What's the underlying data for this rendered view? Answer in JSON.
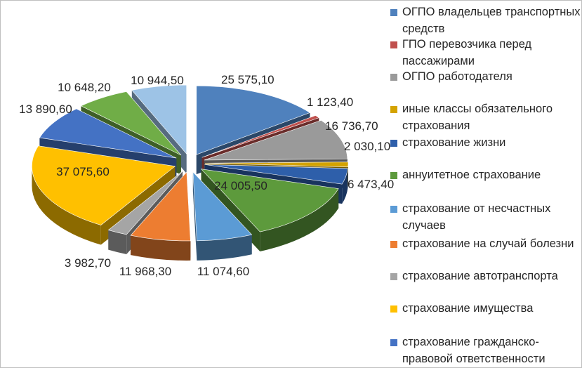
{
  "chart_data": {
    "type": "pie",
    "title": "",
    "slices": [
      {
        "label": "ОГПО владельцев транспортных средств",
        "value": 25575.1,
        "display": "25 575,10",
        "color": "#4f81bd"
      },
      {
        "label": "ГПО перевозчика перед пассажирами",
        "value": 1123.4,
        "display": "1 123,40",
        "color": "#c0504d"
      },
      {
        "label": "ОГПО работодателя",
        "value": 16736.7,
        "display": "16 736,70",
        "color": "#9a9a9a"
      },
      {
        "label": "иные классы обязательного страхования",
        "value": 2030.1,
        "display": "2 030,10",
        "color": "#d4a300"
      },
      {
        "label": "страхование жизни",
        "value": 6473.4,
        "display": "6 473,40",
        "color": "#2e5faa"
      },
      {
        "label": "аннуитетное страхование",
        "value": 24005.5,
        "display": "24 005,50",
        "color": "#5d9a3c"
      },
      {
        "label": "страхование от несчастных случаев",
        "value": 11074.6,
        "display": "11 074,60",
        "color": "#5b9bd5"
      },
      {
        "label": "страхование на случай болезни",
        "value": 11968.3,
        "display": "11 968,30",
        "color": "#ed7d31"
      },
      {
        "label": "страхование автотранспорта",
        "value": 3982.7,
        "display": "3 982,70",
        "color": "#a5a5a5"
      },
      {
        "label": "страхование имущества",
        "value": 37075.6,
        "display": "37 075,60",
        "color": "#ffc000"
      },
      {
        "label": "страхование гражданско-правовой ответственности",
        "value": 13890.6,
        "display": "13 890,60",
        "color": "#4472c4"
      },
      {
        "label": "",
        "value": 10648.2,
        "display": "10 648,20",
        "color": "#70ad47"
      },
      {
        "label": "",
        "value": 10944.5,
        "display": "10 944,50",
        "color": "#9dc3e6"
      }
    ],
    "legend": {
      "placement": "right",
      "items": [
        {
          "text": "ОГПО владельцев транспортных средств",
          "color": "#4f81bd"
        },
        {
          "text": "ГПО перевозчика перед пассажирами",
          "color": "#c0504d"
        },
        {
          "text": "ОГПО работодателя",
          "color": "#9a9a9a"
        },
        {
          "text": "иные классы обязательного страхования",
          "color": "#d4a300"
        },
        {
          "text": "страхование жизни",
          "color": "#2e5faa"
        },
        {
          "text": "аннуитетное страхование",
          "color": "#5d9a3c"
        },
        {
          "text": "страхование от несчастных случаев",
          "color": "#5b9bd5"
        },
        {
          "text": "страхование на случай болезни",
          "color": "#ed7d31"
        },
        {
          "text": "страхование автотранспорта",
          "color": "#a5a5a5"
        },
        {
          "text": "страхование имущества",
          "color": "#ffc000"
        },
        {
          "text": "страхование гражданско-правовой ответственности",
          "color": "#4472c4"
        }
      ]
    }
  }
}
